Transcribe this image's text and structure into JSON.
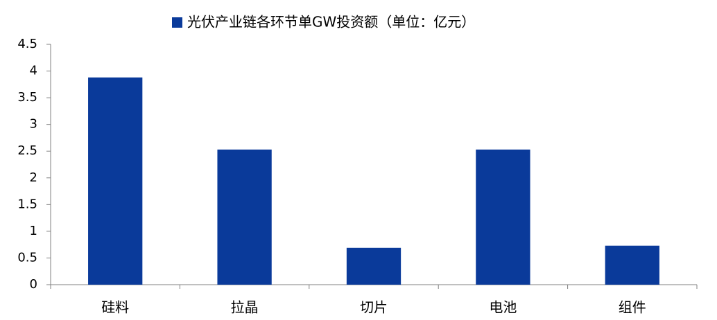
{
  "chart_data": {
    "type": "bar",
    "categories": [
      "硅料",
      "拉晶",
      "切片",
      "电池",
      "组件"
    ],
    "series": [
      {
        "name": "光伏产业链各环节单GW投资额（单位：亿元）",
        "color": "#0a3a9a",
        "values": [
          3.88,
          2.53,
          0.69,
          2.53,
          0.73
        ]
      }
    ],
    "ylim": [
      0,
      4.5
    ],
    "yticks": [
      0,
      0.5,
      1,
      1.5,
      2,
      2.5,
      3,
      3.5,
      4,
      4.5
    ],
    "legend": "top",
    "grid": false
  }
}
